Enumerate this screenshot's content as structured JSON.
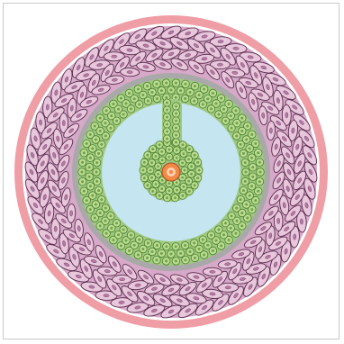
{
  "figure": {
    "kind": "concentric cell layer diagram",
    "layers": [
      {
        "id": "outer-ring",
        "fill": "#ef9ea6"
      },
      {
        "id": "outer-cell-layer",
        "cell_fill": "#e8c6dc",
        "cell_stroke": "#5a2d4d",
        "band_fill": "#d7a9c8"
      },
      {
        "id": "grey-band",
        "fill": "#a9a9a9"
      },
      {
        "id": "green-cell-layer",
        "cell_fill": "#b9dc92",
        "cell_stroke": "#4b7f2a",
        "nucleus": "#6f9f45"
      },
      {
        "id": "lumen",
        "fill": "#c5e6f0"
      },
      {
        "id": "center-core",
        "fill": "#f28a45",
        "highlight": "#fbd1b5",
        "stroke": "#b2542a"
      }
    ]
  }
}
